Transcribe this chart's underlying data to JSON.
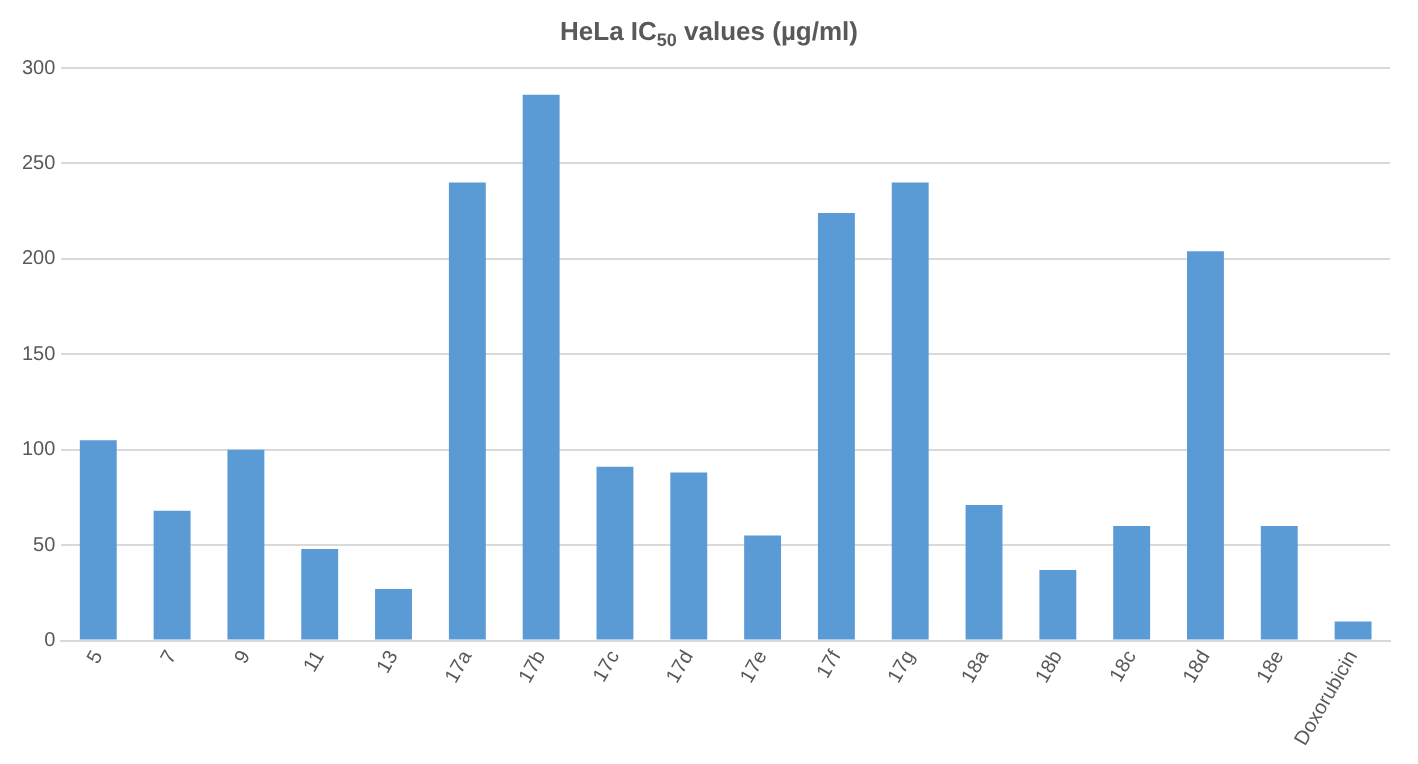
{
  "chart_data": {
    "type": "bar",
    "title": "HeLa IC$_{50}$ values (µg/ml)",
    "categories": [
      "5",
      "7",
      "9",
      "11",
      "13",
      "17a",
      "17b",
      "17c",
      "17d",
      "17e",
      "17f",
      "17g",
      "18a",
      "18b",
      "18c",
      "18d",
      "18e",
      "Doxorubicin"
    ],
    "values": [
      105,
      68,
      100,
      48,
      27,
      240,
      286,
      91,
      88,
      55,
      224,
      240,
      71,
      37,
      60,
      204,
      60,
      10
    ],
    "color": "#5b9bd5",
    "ylim": [
      0,
      300
    ],
    "yticks": [
      0,
      50,
      100,
      150,
      200,
      250,
      300
    ],
    "grid": "y"
  }
}
